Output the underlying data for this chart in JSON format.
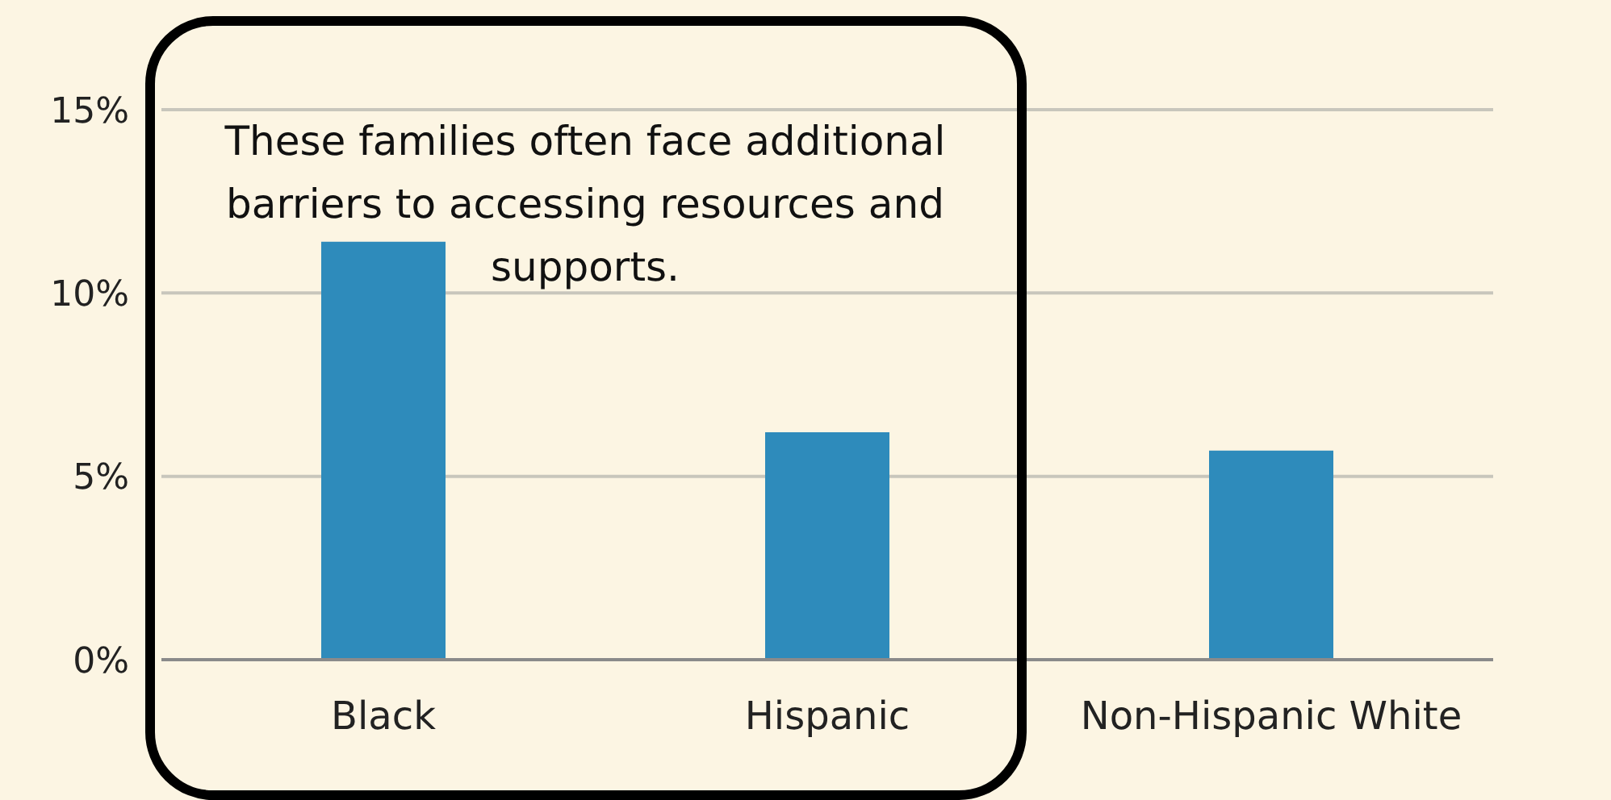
{
  "chart_data": {
    "type": "bar",
    "categories": [
      "Black",
      "Hispanic",
      "Non-Hispanic White"
    ],
    "values": [
      11.4,
      6.2,
      5.7
    ],
    "color": "#2e8bbb",
    "ylim": [
      0,
      15
    ],
    "yticks": [
      {
        "value": 0,
        "label": "0%"
      },
      {
        "value": 5,
        "label": "5%"
      },
      {
        "value": 10,
        "label": "10%"
      },
      {
        "value": 15,
        "label": "15%"
      }
    ],
    "grid": "y",
    "annotations": [
      "These families often face additional barriers to accessing resources and supports."
    ]
  }
}
